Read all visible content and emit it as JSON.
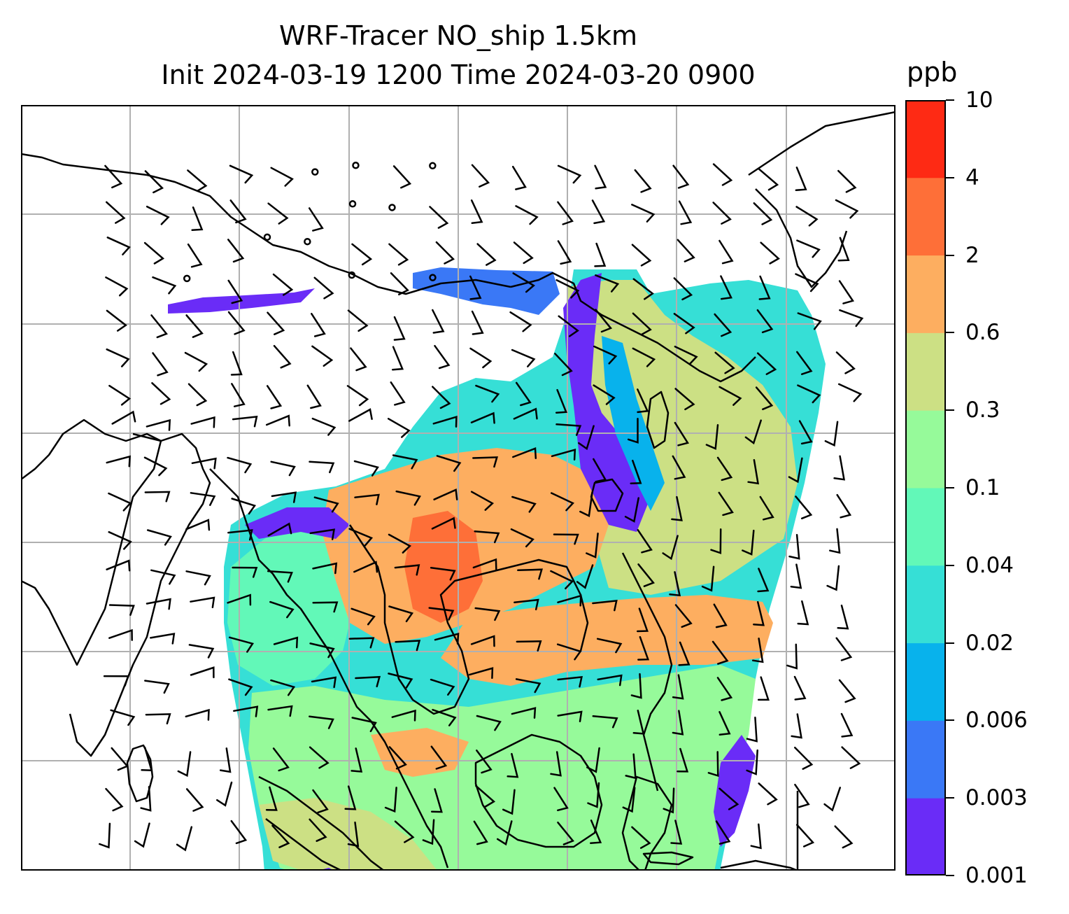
{
  "figure": {
    "title_line1": "WRF-Tracer NO_ship 1.5km",
    "title_line2": "Init 2024-03-19 1200 Time 2024-03-20 0900"
  },
  "colorbar": {
    "unit": "ppb",
    "levels": [
      "0.001",
      "0.003",
      "0.006",
      "0.02",
      "0.04",
      "0.1",
      "0.3",
      "0.6",
      "2",
      "4",
      "10"
    ],
    "colors": [
      "#6a2cf7",
      "#3a78f6",
      "#08b2ec",
      "#36dfd6",
      "#62f8b8",
      "#96fa9a",
      "#cce084",
      "#fdae60",
      "#fe6f38",
      "#fe2a14"
    ]
  },
  "map": {
    "grid_color": "#b0b0b0",
    "coastline_color": "#000000",
    "wind_barb_color": "#000000",
    "background": "#ffffff"
  }
}
